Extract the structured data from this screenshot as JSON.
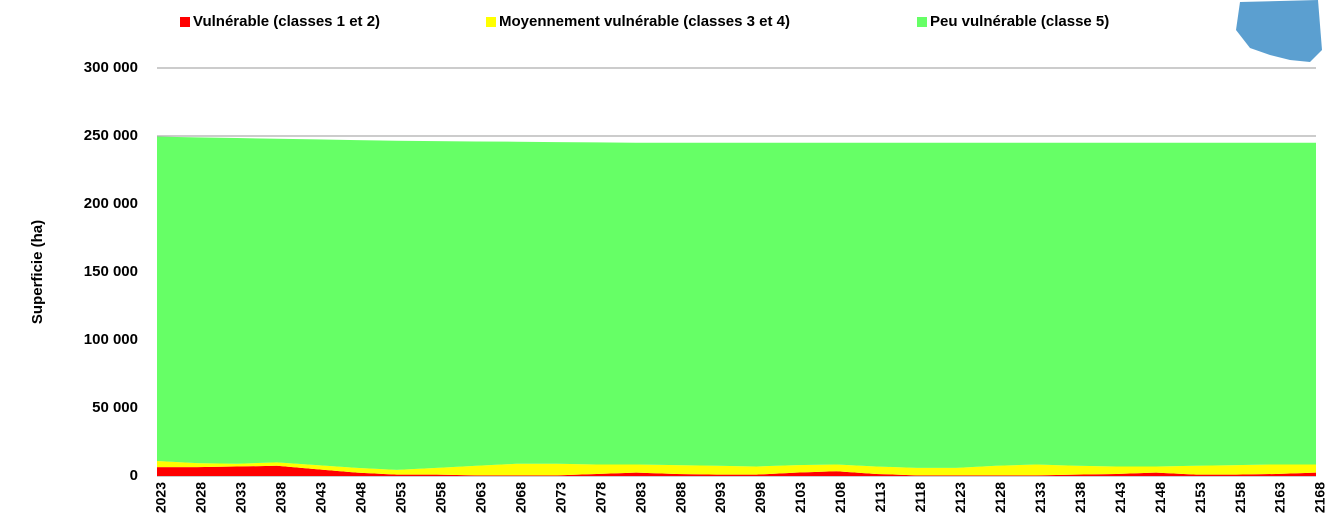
{
  "chart_data": {
    "type": "stacked_area",
    "y_label": "Superficie  (ha)",
    "x": [
      2023,
      2028,
      2033,
      2038,
      2043,
      2048,
      2053,
      2058,
      2063,
      2068,
      2073,
      2078,
      2083,
      2088,
      2093,
      2098,
      2103,
      2108,
      2113,
      2118,
      2123,
      2128,
      2133,
      2138,
      2143,
      2148,
      2153,
      2158,
      2163,
      2168
    ],
    "series": [
      {
        "name": "Vulnérable (classes 1 et 2)",
        "color": "#ff0000",
        "values": [
          6500,
          6500,
          7000,
          7500,
          5000,
          2500,
          1000,
          1000,
          500,
          500,
          500,
          1500,
          2500,
          1500,
          1000,
          1000,
          2500,
          3500,
          1500,
          500,
          500,
          500,
          500,
          1000,
          1500,
          2500,
          1000,
          1000,
          1500,
          2500
        ]
      },
      {
        "name": "Moyennement vulnérable (classes 3 et 4)",
        "color": "#ffff00",
        "values": [
          4500,
          3000,
          2000,
          2500,
          3000,
          3500,
          3500,
          5000,
          7000,
          8500,
          8500,
          7000,
          6000,
          6500,
          6500,
          6000,
          5500,
          5000,
          5500,
          5500,
          5500,
          7000,
          8000,
          6500,
          5500,
          4500,
          6500,
          7000,
          7000,
          6000
        ]
      },
      {
        "name": "Peu vulnérable (classe 5)",
        "color": "#66ff66",
        "values": [
          238500,
          239500,
          239500,
          238000,
          239500,
          241000,
          242000,
          240200,
          238500,
          236800,
          236500,
          236800,
          236500,
          237000,
          237500,
          238000,
          237000,
          236500,
          238000,
          239000,
          239000,
          237500,
          236500,
          237500,
          238000,
          238000,
          237500,
          237000,
          236500,
          236500
        ]
      }
    ],
    "ylim": [
      0,
      300000
    ],
    "yticks": [
      0,
      {
        "value": 50000,
        "label": "50 000"
      },
      {
        "value": 100000,
        "label": "100 000"
      },
      {
        "value": 150000,
        "label": "150 000"
      },
      {
        "value": 200000,
        "label": "200 000"
      },
      {
        "value": 250000,
        "label": "250 000"
      },
      {
        "value": 300000,
        "label": "300 000"
      }
    ],
    "grid": true,
    "legend": "top"
  }
}
